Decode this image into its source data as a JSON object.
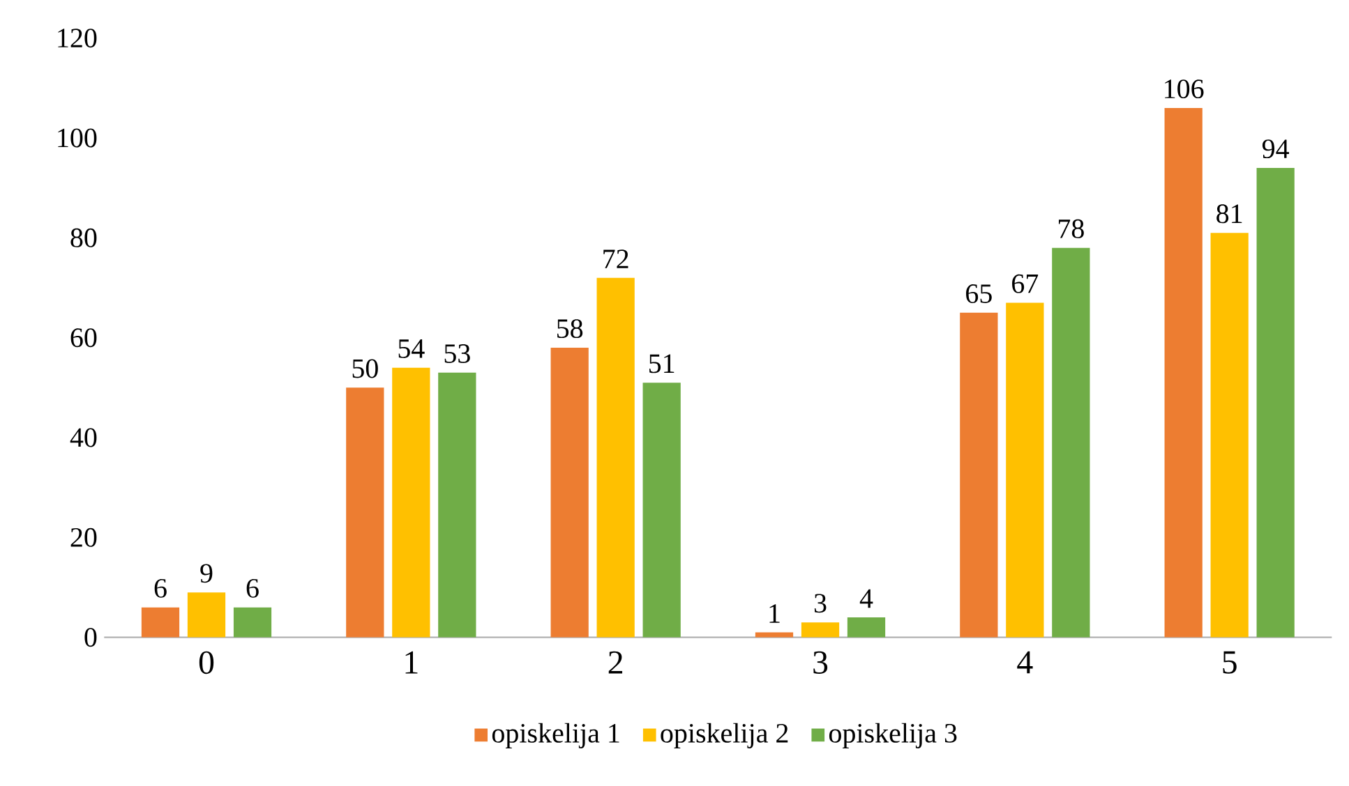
{
  "chart_data": {
    "type": "bar",
    "categories": [
      "0",
      "1",
      "2",
      "3",
      "4",
      "5"
    ],
    "series": [
      {
        "name": "opiskelija 1",
        "color": "#ed7d31",
        "values": [
          6,
          50,
          58,
          1,
          65,
          106
        ]
      },
      {
        "name": "opiskelija 2",
        "color": "#ffc000",
        "values": [
          9,
          54,
          72,
          3,
          67,
          81
        ]
      },
      {
        "name": "opiskelija 3",
        "color": "#70ad47",
        "values": [
          6,
          53,
          51,
          4,
          78,
          94
        ]
      }
    ],
    "ylim": [
      0,
      120
    ],
    "yticks": [
      0,
      20,
      40,
      60,
      80,
      100,
      120
    ],
    "legend": "bottom",
    "data_labels": true
  }
}
